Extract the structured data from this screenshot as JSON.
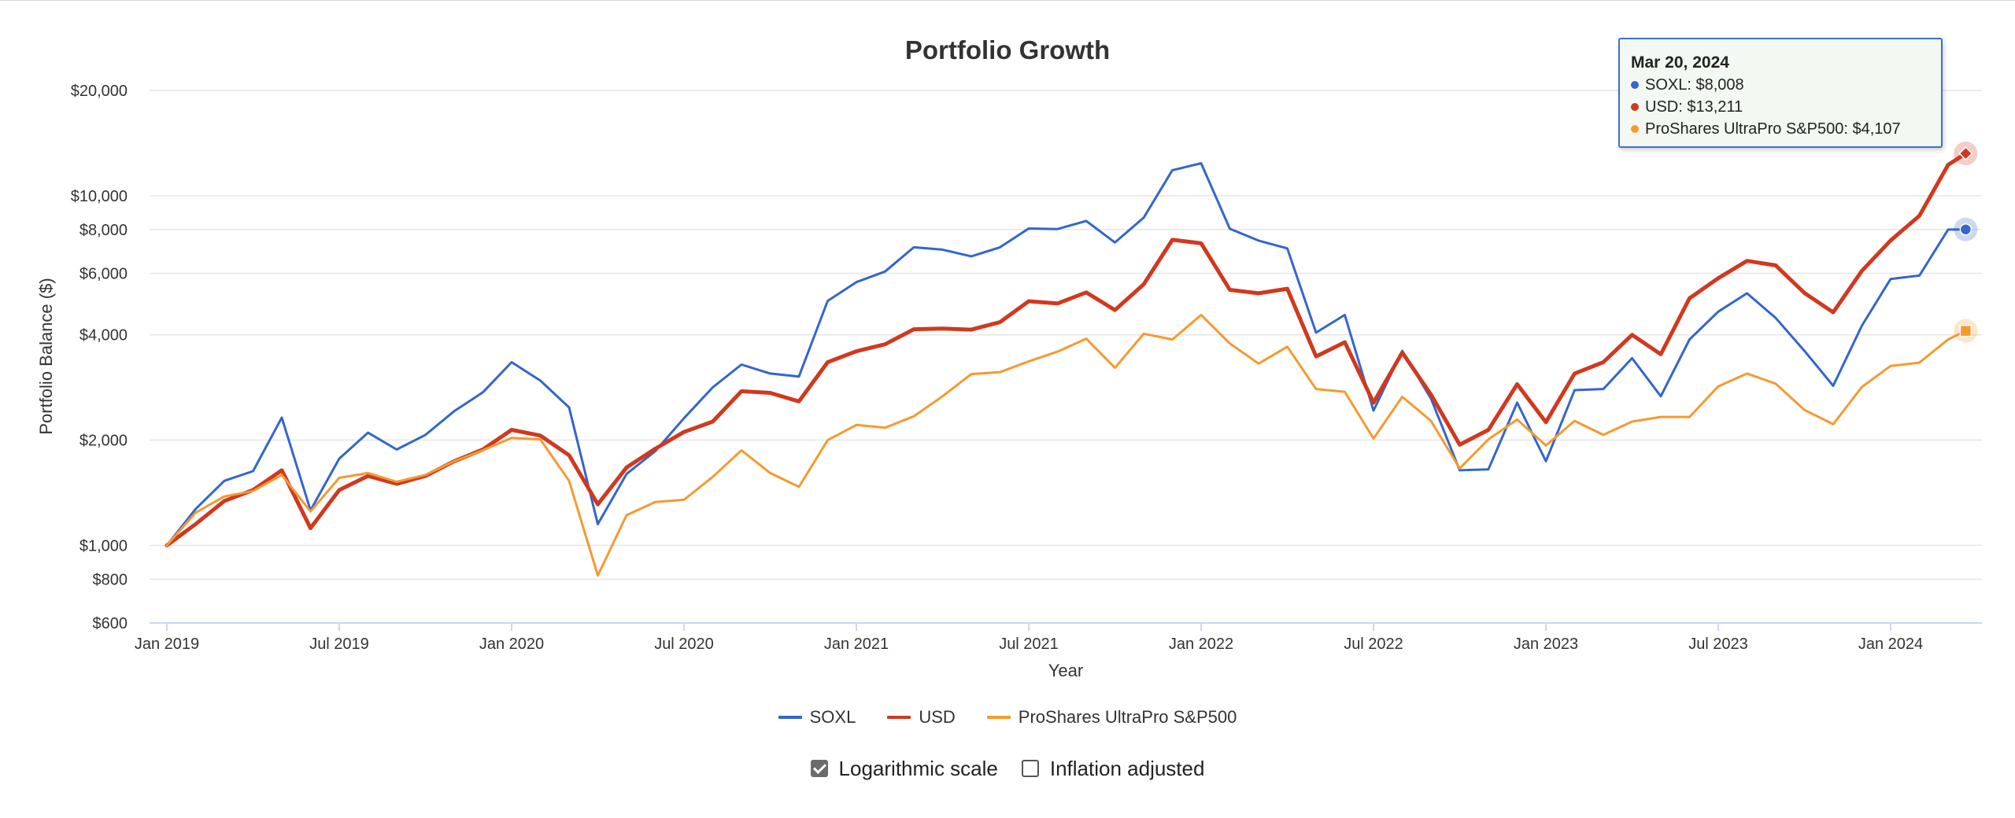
{
  "chart_data": {
    "type": "line",
    "title": "Portfolio Growth",
    "xlabel": "Year",
    "ylabel": "Portfolio Balance ($)",
    "yscale": "log",
    "ylim": [
      600,
      20000
    ],
    "grid": true,
    "legend_position": "bottom",
    "x_ticks": [
      "Jan 2019",
      "Jul 2019",
      "Jan 2020",
      "Jul 2020",
      "Jan 2021",
      "Jul 2021",
      "Jan 2022",
      "Jul 2022",
      "Jan 2023",
      "Jul 2023",
      "Jan 2024"
    ],
    "y_ticks": [
      {
        "value": 600,
        "label": "$600"
      },
      {
        "value": 800,
        "label": "$800"
      },
      {
        "value": 1000,
        "label": "$1,000"
      },
      {
        "value": 2000,
        "label": "$2,000"
      },
      {
        "value": 4000,
        "label": "$4,000"
      },
      {
        "value": 6000,
        "label": "$6,000"
      },
      {
        "value": 8000,
        "label": "$8,000"
      },
      {
        "value": 10000,
        "label": "$10,000"
      },
      {
        "value": 20000,
        "label": "$20,000"
      }
    ],
    "x": [
      "2019-01",
      "2019-02",
      "2019-03",
      "2019-04",
      "2019-05",
      "2019-06",
      "2019-07",
      "2019-08",
      "2019-09",
      "2019-10",
      "2019-11",
      "2019-12",
      "2020-01",
      "2020-02",
      "2020-03",
      "2020-04",
      "2020-05",
      "2020-06",
      "2020-07",
      "2020-08",
      "2020-09",
      "2020-10",
      "2020-11",
      "2020-12",
      "2021-01",
      "2021-02",
      "2021-03",
      "2021-04",
      "2021-05",
      "2021-06",
      "2021-07",
      "2021-08",
      "2021-09",
      "2021-10",
      "2021-11",
      "2021-12",
      "2022-01",
      "2022-02",
      "2022-03",
      "2022-04",
      "2022-05",
      "2022-06",
      "2022-07",
      "2022-08",
      "2022-09",
      "2022-10",
      "2022-11",
      "2022-12",
      "2023-01",
      "2023-02",
      "2023-03",
      "2023-04",
      "2023-05",
      "2023-06",
      "2023-07",
      "2023-08",
      "2023-09",
      "2023-10",
      "2023-11",
      "2023-12",
      "2024-01",
      "2024-02",
      "2024-03",
      "2024-03-20"
    ],
    "series": [
      {
        "name": "SOXL",
        "color": "#3366cc",
        "width": 3,
        "values": [
          1000,
          1270,
          1530,
          1630,
          2320,
          1260,
          1770,
          2100,
          1880,
          2070,
          2420,
          2740,
          3340,
          2960,
          2480,
          1150,
          1600,
          1860,
          2310,
          2830,
          3290,
          3100,
          3040,
          5000,
          5660,
          6070,
          7120,
          7010,
          6710,
          7120,
          8060,
          8030,
          8470,
          7350,
          8650,
          11830,
          12380,
          8040,
          7440,
          7070,
          4060,
          4560,
          2430,
          3600,
          2630,
          1640,
          1650,
          2560,
          1740,
          2780,
          2800,
          3430,
          2670,
          3880,
          4660,
          5260,
          4470,
          3600,
          2860,
          4250,
          5780,
          5910,
          8000,
          8008
        ]
      },
      {
        "name": "USD",
        "color": "#d0391f",
        "width": 5,
        "values": [
          1000,
          1150,
          1340,
          1440,
          1640,
          1120,
          1440,
          1580,
          1500,
          1580,
          1740,
          1880,
          2140,
          2060,
          1810,
          1310,
          1670,
          1890,
          2110,
          2260,
          2760,
          2730,
          2580,
          3340,
          3590,
          3760,
          4150,
          4170,
          4140,
          4350,
          4990,
          4920,
          5290,
          4710,
          5580,
          7480,
          7310,
          5380,
          5260,
          5420,
          3470,
          3810,
          2560,
          3560,
          2700,
          1940,
          2140,
          2890,
          2250,
          3100,
          3340,
          4000,
          3520,
          5090,
          5810,
          6510,
          6320,
          5270,
          4640,
          6100,
          7450,
          8760,
          12250,
          13211
        ]
      },
      {
        "name": "ProShares UltraPro S&P500",
        "color": "#f59a2f",
        "width": 3,
        "values": [
          1000,
          1240,
          1380,
          1430,
          1590,
          1250,
          1560,
          1610,
          1520,
          1590,
          1740,
          1870,
          2030,
          2010,
          1530,
          820,
          1220,
          1330,
          1350,
          1570,
          1870,
          1610,
          1470,
          2000,
          2210,
          2170,
          2340,
          2670,
          3090,
          3130,
          3360,
          3580,
          3900,
          3220,
          4030,
          3880,
          4560,
          3780,
          3310,
          3700,
          2800,
          2750,
          2020,
          2660,
          2270,
          1660,
          2010,
          2290,
          1930,
          2270,
          2070,
          2260,
          2330,
          2330,
          2850,
          3100,
          2900,
          2440,
          2220,
          2840,
          3260,
          3330,
          3880,
          4107
        ]
      }
    ]
  },
  "legend": {
    "items": [
      {
        "label": "SOXL",
        "color": "#3366cc"
      },
      {
        "label": "USD",
        "color": "#d0391f"
      },
      {
        "label": "ProShares UltraPro S&P500",
        "color": "#f59a2f"
      }
    ]
  },
  "options": {
    "log_scale": {
      "label": "Logarithmic scale",
      "checked": true
    },
    "inflation": {
      "label": "Inflation adjusted",
      "checked": false
    }
  },
  "tooltip": {
    "date": "Mar 20, 2024",
    "rows": [
      {
        "text": "SOXL: $8,008",
        "color": "#3366cc"
      },
      {
        "text": "USD: $13,211",
        "color": "#d0391f"
      },
      {
        "text": "ProShares UltraPro S&P500: $4,107",
        "color": "#f59a2f"
      }
    ]
  }
}
